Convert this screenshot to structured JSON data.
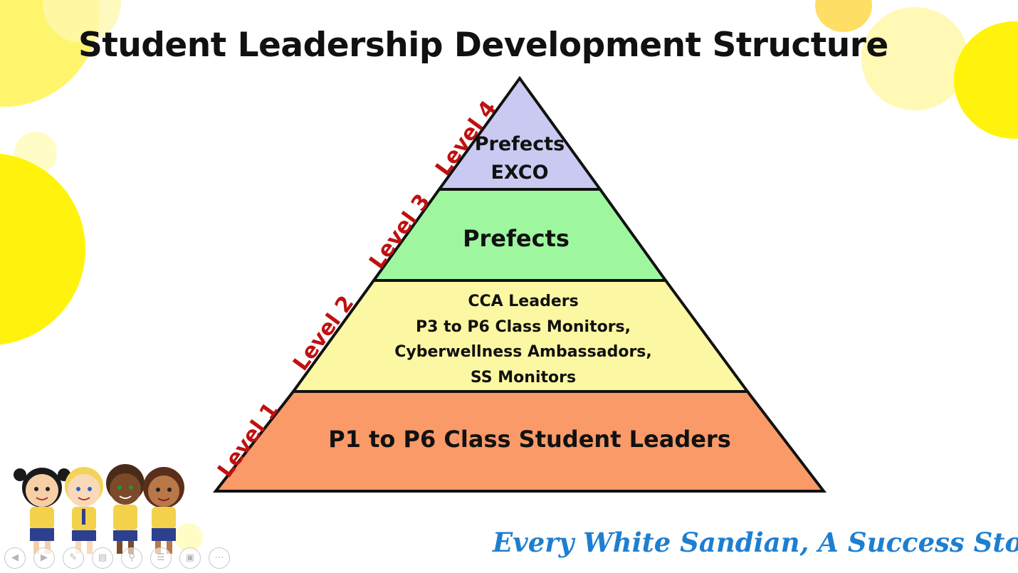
{
  "title": "Student Leadership Development Structure",
  "tiers": [
    {
      "level": "Level 4",
      "lines": [
        "Prefects",
        "EXCO"
      ],
      "color": "#c9c9f2"
    },
    {
      "level": "Level 3",
      "lines": [
        "Prefects"
      ],
      "color": "#9ef79e"
    },
    {
      "level": "Level 2",
      "lines": [
        "CCA Leaders",
        "P3 to P6 Class Monitors,",
        "Cyberwellness Ambassadors,",
        "SS Monitors"
      ],
      "color": "#fcf7a2"
    },
    {
      "level": "Level 1",
      "lines": [
        "P1 to P6 Class Student Leaders"
      ],
      "color": "#f99a68"
    }
  ],
  "tagline": "Every White Sandian, A Success Story",
  "colors": {
    "level_label": "#c01010",
    "tagline": "#1e7fd0",
    "decor_yellow": "#fff200"
  },
  "nav_icons": [
    "previous-icon",
    "next-icon",
    "pen-icon",
    "slides-icon",
    "zoom-icon",
    "subtitles-icon",
    "video-icon",
    "more-icon"
  ]
}
